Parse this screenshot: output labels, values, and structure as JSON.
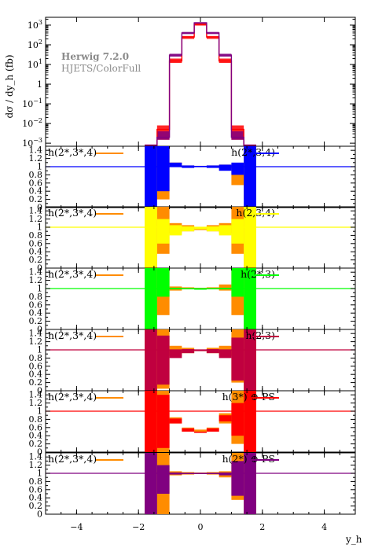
{
  "figure": {
    "ylabel": "dσ / dy_h (fb)",
    "xlabel": "y_h",
    "generator": "Herwig 7.2.0",
    "subtitle": "HJETS/ColorFull"
  },
  "colors": {
    "ref": "#ff8c00",
    "blue": "#0000ff",
    "yellow": "#ffff00",
    "green": "#00ff00",
    "crimson": "#c0003f",
    "red": "#ff0000",
    "purple": "#800080"
  },
  "chart_data": [
    {
      "type": "line",
      "panel": "main",
      "ylabel": "dσ / dy_h (fb)",
      "yscale": "log",
      "ylim": [
        0.0007,
        2500
      ],
      "xlim": [
        -5,
        5
      ],
      "yticks": [
        "10^-3",
        "10^-2",
        "10^-1",
        "1",
        "10^1",
        "10^2",
        "10^3"
      ],
      "bin_edges": [
        -1.8,
        -1.4,
        -1.0,
        -0.6,
        -0.2,
        0.2,
        0.6,
        1.0,
        1.4,
        1.8
      ],
      "series": [
        {
          "color": "#ff0000",
          "values": [
            0.0008,
            0.005,
            15,
            250,
            1100,
            250,
            15,
            0.005,
            0.0008
          ]
        },
        {
          "color": "#800080",
          "values": [
            0.0008,
            0.002,
            30,
            400,
            1300,
            400,
            30,
            0.002,
            0.0008
          ]
        }
      ],
      "bands": [
        {
          "color": "#ff0000",
          "lo": [
            0.0008,
            0.0015,
            12,
            200,
            950,
            200,
            12,
            0.0015,
            0.0008
          ],
          "hi": [
            0.0008,
            0.008,
            20,
            280,
            1200,
            280,
            20,
            0.008,
            0.0008
          ]
        },
        {
          "color": "#800080",
          "lo": [
            0.0008,
            0.0015,
            25,
            350,
            1200,
            350,
            25,
            0.0015,
            0.0008
          ],
          "hi": [
            0.0008,
            0.004,
            35,
            450,
            1400,
            450,
            35,
            0.004,
            0.0008
          ]
        }
      ]
    },
    {
      "type": "line",
      "panel": "ratio",
      "ylim": [
        0,
        1.5
      ],
      "yticks": [
        "0",
        "0.2",
        "0.4",
        "0.6",
        "0.8",
        "1",
        "1.2",
        "1.4"
      ],
      "ref_label": "h(2*,3*,4)",
      "label": "h(2*,3,4)",
      "color": "#0000ff",
      "bin_edges": [
        -1.8,
        -1.4,
        -1.0,
        -0.6,
        -0.2,
        0.2,
        0.6,
        1.0,
        1.4,
        1.8
      ],
      "ref_band": {
        "lo": [
          0.2,
          0.2,
          1.05,
          0.99,
          1.0,
          0.99,
          0.95,
          0.55,
          0.2
        ],
        "hi": [
          1.5,
          1.5,
          1.1,
          1.03,
          1.02,
          1.03,
          1.05,
          1.0,
          1.5
        ]
      },
      "band": {
        "lo": [
          0,
          0.4,
          1.0,
          0.97,
          0.99,
          0.97,
          0.9,
          0.8,
          0
        ],
        "hi": [
          1.5,
          1.5,
          1.1,
          1.03,
          1.02,
          1.03,
          1.05,
          1.1,
          1.5
        ]
      },
      "values": [
        1,
        1,
        1,
        1,
        1,
        1,
        1,
        1,
        1
      ]
    },
    {
      "type": "line",
      "panel": "ratio",
      "ylim": [
        0,
        1.5
      ],
      "yticks": [
        "0",
        "0.2",
        "0.4",
        "0.6",
        "0.8",
        "1",
        "1.2",
        "1.4"
      ],
      "ref_label": "h(2*,3*,4)",
      "label": "h(2,3,4)",
      "color": "#ffff00",
      "bin_edges": [
        -1.8,
        -1.4,
        -1.0,
        -0.6,
        -0.2,
        0.2,
        0.6,
        1.0,
        1.4,
        1.8
      ],
      "ref_band": {
        "lo": [
          0,
          0.35,
          0.85,
          0.9,
          0.93,
          0.9,
          0.85,
          0.35,
          0
        ],
        "hi": [
          1.5,
          1.5,
          1.1,
          1.05,
          1.0,
          1.05,
          1.1,
          1.5,
          1.5
        ]
      },
      "band": {
        "lo": [
          0,
          0.6,
          0.8,
          0.9,
          0.95,
          0.9,
          0.8,
          0.6,
          0
        ],
        "hi": [
          1.5,
          1.2,
          1.05,
          1.02,
          1.0,
          1.02,
          1.05,
          1.2,
          1.5
        ]
      },
      "values": [
        1,
        1,
        1,
        1,
        1,
        1,
        1,
        1,
        1
      ]
    },
    {
      "type": "line",
      "panel": "ratio",
      "ylim": [
        0,
        1.5
      ],
      "yticks": [
        "0",
        "0.2",
        "0.4",
        "0.6",
        "0.8",
        "1",
        "1.2",
        "1.4"
      ],
      "ref_label": "h(2*,3*,4)",
      "label": "h(2*,3)",
      "color": "#00ff00",
      "bin_edges": [
        -1.8,
        -1.4,
        -1.0,
        -0.6,
        -0.2,
        0.2,
        0.6,
        1.0,
        1.4,
        1.8
      ],
      "ref_band": {
        "lo": [
          0,
          0.35,
          0.95,
          0.98,
          1.0,
          0.98,
          0.95,
          0.35,
          0
        ],
        "hi": [
          1.5,
          1.5,
          1.05,
          1.03,
          1.02,
          1.03,
          1.1,
          1.5,
          1.5
        ]
      },
      "band": {
        "lo": [
          0,
          0.8,
          0.98,
          0.99,
          1.0,
          0.99,
          0.98,
          0.8,
          0
        ],
        "hi": [
          1.5,
          1.5,
          1.02,
          1.01,
          1.0,
          1.01,
          1.02,
          1.5,
          1.5
        ]
      },
      "values": [
        1,
        1,
        1,
        1,
        1,
        1,
        1,
        1,
        1
      ]
    },
    {
      "type": "line",
      "panel": "ratio",
      "ylim": [
        0,
        1.5
      ],
      "yticks": [
        "0",
        "0.2",
        "0.4",
        "0.6",
        "0.8",
        "1",
        "1.2",
        "1.4"
      ],
      "ref_label": "h(2*,3*,4)",
      "label": "h(2,3)",
      "color": "#c0003f",
      "bin_edges": [
        -1.8,
        -1.4,
        -1.0,
        -0.6,
        -0.2,
        0.2,
        0.6,
        1.0,
        1.4,
        1.8
      ],
      "ref_band": {
        "lo": [
          0,
          0.05,
          0.85,
          0.92,
          0.97,
          0.92,
          0.85,
          0.2,
          0
        ],
        "hi": [
          1.5,
          1.5,
          1.1,
          1.05,
          1.0,
          1.05,
          1.1,
          1.5,
          1.5
        ]
      },
      "band": {
        "lo": [
          0,
          0.15,
          0.8,
          0.92,
          0.97,
          0.92,
          0.8,
          0.25,
          0
        ],
        "hi": [
          1.5,
          1.35,
          1.0,
          1.02,
          1.0,
          1.02,
          1.0,
          1.3,
          1.5
        ]
      },
      "values": [
        1,
        1,
        1,
        1,
        1,
        1,
        1,
        1,
        1
      ]
    },
    {
      "type": "line",
      "panel": "ratio",
      "ylim": [
        0,
        1.5
      ],
      "yticks": [
        "0",
        "0.2",
        "0.4",
        "0.6",
        "0.8",
        "1",
        "1.2",
        "1.4"
      ],
      "ref_label": "h(2*,3*,4)",
      "label": "h(3*) ⊕ PS",
      "color": "#ff0000",
      "bin_edges": [
        -1.8,
        -1.4,
        -1.0,
        -0.6,
        -0.2,
        0.2,
        0.6,
        1.0,
        1.4,
        1.8
      ],
      "ref_band": {
        "lo": [
          0,
          0,
          0.7,
          0.5,
          0.47,
          0.5,
          0.7,
          0.2,
          0
        ],
        "hi": [
          1.5,
          1.5,
          0.85,
          0.6,
          0.55,
          0.6,
          0.95,
          1.5,
          1.5
        ]
      },
      "band": {
        "lo": [
          0,
          0.1,
          0.7,
          0.5,
          0.47,
          0.5,
          0.75,
          0.4,
          0
        ],
        "hi": [
          1.5,
          1.4,
          0.82,
          0.58,
          0.5,
          0.58,
          0.9,
          1.2,
          1.5
        ]
      },
      "values": [
        1,
        1,
        1,
        1,
        1,
        1,
        1,
        1,
        1
      ]
    },
    {
      "type": "line",
      "panel": "ratio",
      "ylim": [
        0,
        1.5
      ],
      "yticks": [
        "0",
        "0.2",
        "0.4",
        "0.6",
        "0.8",
        "1",
        "1.2",
        "1.4"
      ],
      "ref_label": "h(2*,3*,4)",
      "label": "h(2*) ⊕ PS",
      "color": "#800080",
      "bin_edges": [
        -1.8,
        -1.4,
        -1.0,
        -0.6,
        -0.2,
        0.2,
        0.6,
        1.0,
        1.4,
        1.8
      ],
      "ref_band": {
        "lo": [
          0,
          0,
          0.95,
          0.97,
          1.0,
          0.97,
          0.9,
          0.35,
          0
        ],
        "hi": [
          1.5,
          1.5,
          1.05,
          1.03,
          1.02,
          1.03,
          1.05,
          1.5,
          1.5
        ]
      },
      "band": {
        "lo": [
          0,
          0.5,
          0.97,
          0.98,
          1.0,
          0.98,
          0.95,
          0.45,
          0
        ],
        "hi": [
          1.5,
          1.2,
          1.02,
          1.01,
          1.01,
          1.01,
          1.02,
          1.3,
          1.5
        ]
      },
      "values": [
        1,
        1,
        1,
        1,
        1,
        1,
        1,
        1,
        1
      ]
    }
  ],
  "x_axis": {
    "ticks": [
      "-4",
      "-2",
      "0",
      "2",
      "4"
    ]
  }
}
